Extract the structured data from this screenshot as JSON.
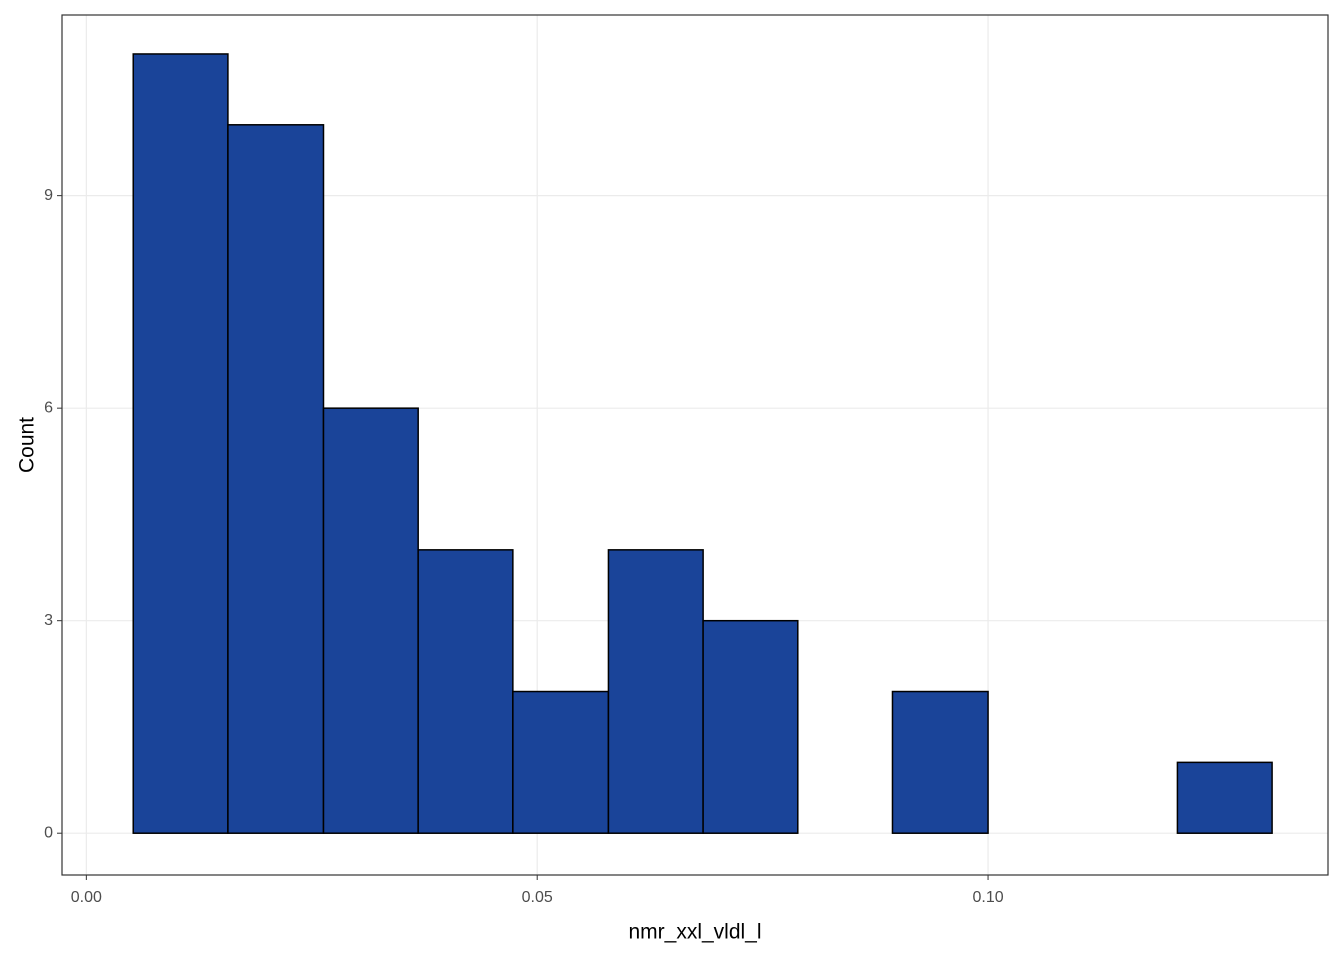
{
  "chart_data": {
    "type": "histogram",
    "x_label": "nmr_xxl_vldl_l",
    "y_label": "Count",
    "bins": [
      0.0052,
      0.0157,
      0.0263,
      0.0368,
      0.0473,
      0.0579,
      0.0684,
      0.0789,
      0.0894,
      0.1,
      0.1105,
      0.121,
      0.1315
    ],
    "values": [
      11,
      10,
      6,
      4,
      2,
      4,
      3,
      0,
      2,
      0,
      0,
      1
    ],
    "color": "#1a4499",
    "xlim": [
      -0.0027,
      0.1377
    ],
    "ylim": [
      -0.59,
      11.55
    ],
    "xticks": [
      {
        "value": 0,
        "label": "0.00"
      },
      0.05,
      {
        "value": 0.1,
        "label": "0.10"
      }
    ],
    "yticks": [
      0,
      3,
      6,
      9
    ],
    "grid": true
  }
}
